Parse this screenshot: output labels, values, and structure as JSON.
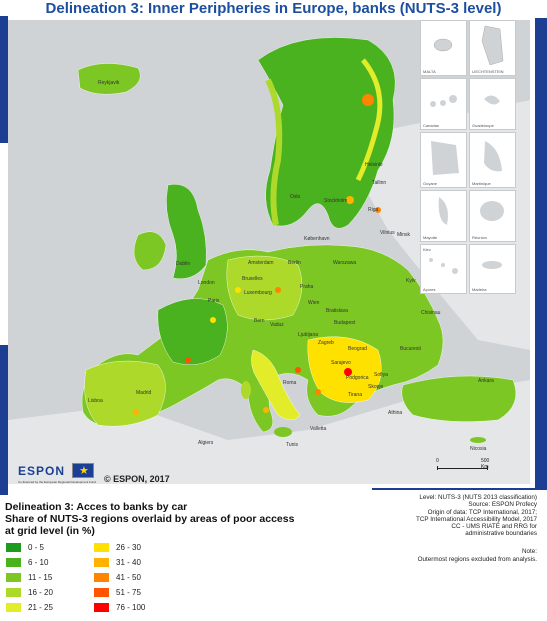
{
  "title": "Delineation 3: Inner Peripheries in Europe, banks (NUTS-3 level)",
  "map": {
    "place_labels": [
      {
        "name": "Reykjavik"
      },
      {
        "name": "Helsinki"
      },
      {
        "name": "Tallinn"
      },
      {
        "name": "Oslo"
      },
      {
        "name": "Stockholm"
      },
      {
        "name": "Riga"
      },
      {
        "name": "Vilnius"
      },
      {
        "name": "København"
      },
      {
        "name": "Minsk"
      },
      {
        "name": "Dublin"
      },
      {
        "name": "Amsterdam"
      },
      {
        "name": "Berlin"
      },
      {
        "name": "Warszawa"
      },
      {
        "name": "London"
      },
      {
        "name": "Bruxelles"
      },
      {
        "name": "Luxembourg"
      },
      {
        "name": "Praha"
      },
      {
        "name": "Kyiv"
      },
      {
        "name": "Paris"
      },
      {
        "name": "Wien"
      },
      {
        "name": "Bratislava"
      },
      {
        "name": "Bern"
      },
      {
        "name": "Vaduz"
      },
      {
        "name": "Budapest"
      },
      {
        "name": "Chisinau"
      },
      {
        "name": "Ljubljana"
      },
      {
        "name": "Zagreb"
      },
      {
        "name": "Beograd"
      },
      {
        "name": "Bucuresti"
      },
      {
        "name": "Sarajevo"
      },
      {
        "name": "Podgorica"
      },
      {
        "name": "Sofiya"
      },
      {
        "name": "Skopje"
      },
      {
        "name": "Tirana"
      },
      {
        "name": "Roma"
      },
      {
        "name": "Madrid"
      },
      {
        "name": "Lisboa"
      },
      {
        "name": "Ankara"
      },
      {
        "name": "Athina"
      },
      {
        "name": "Valletta"
      },
      {
        "name": "Algiers"
      },
      {
        "name": "Tunis"
      },
      {
        "name": "Nicosia"
      }
    ],
    "insets": [
      {
        "label": "MALTA"
      },
      {
        "label": "LIECHTENSTEIN"
      },
      {
        "label": "Canarias"
      },
      {
        "label": "Guadeloupe"
      },
      {
        "label": "Guyane"
      },
      {
        "label": "Martinique"
      },
      {
        "label": "Mayotte"
      },
      {
        "label": "Réunion"
      },
      {
        "label": "Kiev"
      },
      {
        "label": "Açores"
      },
      {
        "label": "Madeira"
      }
    ],
    "scale": {
      "start": "0",
      "end": "500 Km"
    }
  },
  "branding": {
    "logo_text": "ESPON",
    "logo_subtext": "Co-financed by the European Regional Development Fund",
    "copyright": "© ESPON, 2017"
  },
  "legend": {
    "title_line1": "Delineation 3: Acces to banks by car",
    "title_line2": "Share of NUTS-3 regions overlaid by areas of poor access",
    "title_line3": "at grid level (in %)",
    "classes": [
      {
        "label": "0 - 5",
        "color": "#1e9a1e"
      },
      {
        "label": "6 - 10",
        "color": "#4ab11f"
      },
      {
        "label": "11 - 15",
        "color": "#7cc723"
      },
      {
        "label": "16 - 20",
        "color": "#acd92a"
      },
      {
        "label": "21 - 25",
        "color": "#e2ec28"
      },
      {
        "label": "26 - 30",
        "color": "#ffe100"
      },
      {
        "label": "31 - 40",
        "color": "#ffb300"
      },
      {
        "label": "41 - 50",
        "color": "#ff8400"
      },
      {
        "label": "51 - 75",
        "color": "#ff5500"
      },
      {
        "label": "76 - 100",
        "color": "#ff0000"
      }
    ]
  },
  "metadata": {
    "line1": "Level: NUTS-3 (NUTS 2013 classification)",
    "line2": "Source: ESPON Profecy",
    "line3": "Origin of data: TCP International, 2017;",
    "line4": "TCP International Accessibility Model, 2017",
    "line5": "CC - UMS RIATE and RRG for",
    "line6": "administrative boundaries",
    "note_head": "Note:",
    "note_body": "Outermost regions excluded from analysis."
  }
}
